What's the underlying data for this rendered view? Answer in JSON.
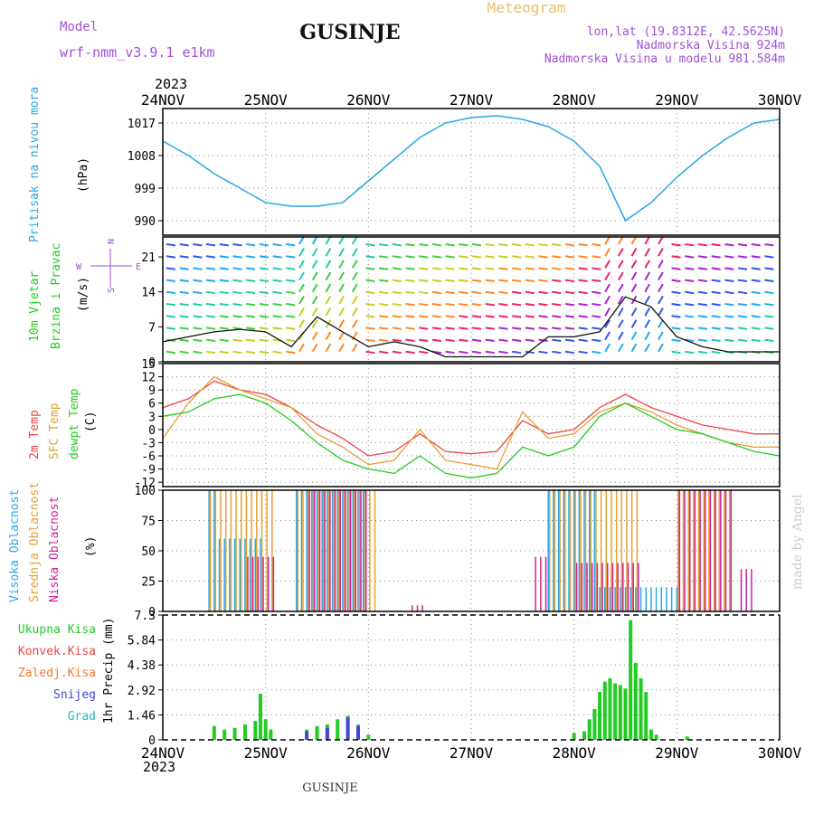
{
  "header": {
    "model_label": "Model",
    "model_name": "wrf-nmm_v3.9.1 e1km",
    "station": "GUSINJE",
    "product": "Meteogram",
    "lonlat": "lon,lat (19.8312E, 42.5625N)",
    "elevation": "Nadmorska Visina 924m",
    "model_elevation": "Nadmorska Visina u modelu 981.584m",
    "footer_station": "GUSINJE",
    "watermark": "made by Angel"
  },
  "colors": {
    "pressure": "#29a7e6",
    "temp2m": "#ee4444",
    "sfc": "#e6a032",
    "dew": "#22cc22",
    "high_cloud": "#29a7e6",
    "mid_cloud": "#e6a032",
    "low_cloud": "#cc2299",
    "total_precip": "#22cc22",
    "conv_precip": "#ee4444",
    "frz_precip": "#f07830",
    "snow": "#4444dd",
    "graupel": "#22bbbb",
    "header_purple": "#a050d8",
    "header_gold": "#e8c070"
  },
  "time_axis": {
    "year": "2023",
    "labels": [
      "24NOV",
      "25NOV",
      "26NOV",
      "27NOV",
      "28NOV",
      "29NOV",
      "30NOV"
    ]
  },
  "panels": {
    "pressure": {
      "label": "Pritisak na nivou mora",
      "unit": "(hPa)"
    },
    "wind": {
      "label1": "10m Vjetar",
      "label2": "Brzina i Pravac",
      "unit": "(m/s)",
      "compass_n": "N",
      "compass_s": "S",
      "compass_w": "W",
      "compass_e": "E"
    },
    "temp": {
      "label_t2m": "2m Temp",
      "label_sfc": "SFC Temp",
      "label_dew": "dewpt Temp",
      "unit": "(C)"
    },
    "cloud": {
      "label_high": "Visoka Oblacnost",
      "label_mid": "Srednja Oblacnost",
      "label_low": "Niska Oblacnost",
      "unit": "(%)"
    },
    "precip": {
      "label": "1hr Precip (mm)",
      "legend": [
        "Ukupna Kisa",
        "Konvek.Kisa",
        "Zaledj.Kisa",
        "Snijeg",
        "Grad"
      ]
    }
  },
  "chart_data": [
    {
      "type": "line",
      "id": "pressure",
      "ylabel": "(hPa)",
      "yticks": [
        990,
        999,
        1008,
        1017
      ],
      "ylim": [
        986,
        1021
      ],
      "x_days": [
        0,
        0.25,
        0.5,
        0.75,
        1.0,
        1.25,
        1.5,
        1.75,
        2.0,
        2.25,
        2.5,
        2.75,
        3.0,
        3.25,
        3.5,
        3.75,
        4.0,
        4.25,
        4.5,
        4.75,
        5.0,
        5.25,
        5.5,
        5.75,
        6.0
      ],
      "series": [
        {
          "values": [
            1012,
            1008,
            1003,
            999,
            995,
            994,
            994,
            995,
            1001,
            1007,
            1013,
            1017,
            1018.5,
            1019,
            1018,
            1016,
            1012,
            1005,
            990,
            995,
            1002,
            1008,
            1013,
            1017,
            1018
          ]
        }
      ]
    },
    {
      "type": "line",
      "id": "wind_speed",
      "ylabel": "(m/s)",
      "yticks": [
        0,
        7,
        14,
        21
      ],
      "ylim": [
        0,
        25
      ],
      "x_days": [
        0,
        0.25,
        0.5,
        0.75,
        1.0,
        1.25,
        1.5,
        1.75,
        2.0,
        2.25,
        2.5,
        2.75,
        3.0,
        3.25,
        3.5,
        3.75,
        4.0,
        4.25,
        4.5,
        4.75,
        5.0,
        5.25,
        5.5,
        5.75,
        6.0
      ],
      "series": [
        {
          "name": "speed",
          "values": [
            4,
            5,
            6,
            6.5,
            6,
            3,
            9,
            6,
            3,
            4,
            3,
            1,
            1,
            1,
            1,
            5,
            5,
            6,
            13,
            11,
            5,
            3,
            2,
            2,
            2
          ]
        }
      ]
    },
    {
      "type": "line",
      "id": "temperature",
      "ylabel": "(C)",
      "yticks": [
        -12,
        -9,
        -6,
        -3,
        0,
        3,
        6,
        9,
        12,
        15
      ],
      "ylim": [
        -13,
        15
      ],
      "x_days": [
        0,
        0.25,
        0.5,
        0.75,
        1.0,
        1.25,
        1.5,
        1.75,
        2.0,
        2.25,
        2.5,
        2.75,
        3.0,
        3.25,
        3.5,
        3.75,
        4.0,
        4.25,
        4.5,
        4.75,
        5.0,
        5.25,
        5.5,
        5.75,
        6.0
      ],
      "series": [
        {
          "name": "2m Temp",
          "values": [
            5,
            7,
            11,
            9,
            8,
            5,
            1,
            -2,
            -6,
            -5,
            -1,
            -5,
            -5.5,
            -5,
            2,
            -1,
            0,
            5,
            8,
            5,
            3,
            1,
            0,
            -1,
            -1
          ]
        },
        {
          "name": "SFC Temp",
          "values": [
            -2,
            6,
            12,
            9,
            7,
            5,
            -1,
            -4,
            -8,
            -7,
            0,
            -7,
            -8,
            -9,
            4,
            -2,
            -1,
            4,
            6,
            4,
            1,
            -1,
            -3,
            -4,
            -4
          ]
        },
        {
          "name": "dewpt Temp",
          "values": [
            3,
            4,
            7,
            8,
            6,
            2,
            -3,
            -7,
            -9,
            -10,
            -6,
            -10,
            -11,
            -10,
            -4,
            -6,
            -4,
            3,
            6,
            3,
            0,
            -1,
            -3,
            -5,
            -6
          ]
        }
      ]
    },
    {
      "type": "bar",
      "id": "cloud_cover",
      "ylabel": "(%)",
      "yticks": [
        0,
        25,
        50,
        75,
        100
      ],
      "ylim": [
        0,
        100
      ],
      "series": [
        {
          "name": "Visoka Oblacnost",
          "segments": [
            [
              0.45,
              0.55,
              100
            ],
            [
              0.55,
              1.0,
              60
            ],
            [
              1.3,
              2.0,
              100
            ],
            [
              3.75,
              4.2,
              100
            ],
            [
              4.2,
              5.0,
              20
            ]
          ]
        },
        {
          "name": "Srednja Oblacnost",
          "segments": [
            [
              0.45,
              1.1,
              100
            ],
            [
              1.3,
              2.1,
              100
            ],
            [
              3.75,
              4.6,
              100
            ],
            [
              5.0,
              5.5,
              100
            ]
          ]
        },
        {
          "name": "Niska Oblacnost",
          "segments": [
            [
              0.8,
              1.1,
              45
            ],
            [
              1.4,
              2.0,
              100
            ],
            [
              2.4,
              2.5,
              5
            ],
            [
              3.6,
              3.7,
              45
            ],
            [
              4.0,
              4.6,
              40
            ],
            [
              5.0,
              5.5,
              100
            ],
            [
              5.6,
              5.7,
              35
            ]
          ]
        }
      ]
    },
    {
      "type": "bar",
      "id": "precipitation",
      "ylabel": "1hr Precip (mm)",
      "yticks": [
        0,
        1.46,
        2.92,
        4.38,
        5.84,
        7.3
      ],
      "ylim": [
        0,
        7.3
      ],
      "series": [
        {
          "name": "Ukupna Kisa",
          "points": [
            [
              0.5,
              0.8
            ],
            [
              0.6,
              0.6
            ],
            [
              0.7,
              0.7
            ],
            [
              0.8,
              0.9
            ],
            [
              0.9,
              1.1
            ],
            [
              0.95,
              2.7
            ],
            [
              1.0,
              1.2
            ],
            [
              1.05,
              0.6
            ],
            [
              1.4,
              0.6
            ],
            [
              1.5,
              0.8
            ],
            [
              1.6,
              0.9
            ],
            [
              1.7,
              1.2
            ],
            [
              1.8,
              1.4
            ],
            [
              1.9,
              0.9
            ],
            [
              2.0,
              0.3
            ],
            [
              4.0,
              0.4
            ],
            [
              4.1,
              0.5
            ],
            [
              4.15,
              1.2
            ],
            [
              4.2,
              1.8
            ],
            [
              4.25,
              2.8
            ],
            [
              4.3,
              3.4
            ],
            [
              4.35,
              3.6
            ],
            [
              4.4,
              3.3
            ],
            [
              4.45,
              3.2
            ],
            [
              4.5,
              3.0
            ],
            [
              4.55,
              7.0
            ],
            [
              4.6,
              4.5
            ],
            [
              4.65,
              3.6
            ],
            [
              4.7,
              2.8
            ],
            [
              4.75,
              0.6
            ],
            [
              4.8,
              0.3
            ],
            [
              5.1,
              0.2
            ]
          ]
        },
        {
          "name": "Snijeg",
          "points": [
            [
              1.4,
              0.5
            ],
            [
              1.6,
              0.7
            ],
            [
              1.8,
              1.3
            ],
            [
              1.9,
              0.8
            ]
          ]
        }
      ]
    }
  ]
}
